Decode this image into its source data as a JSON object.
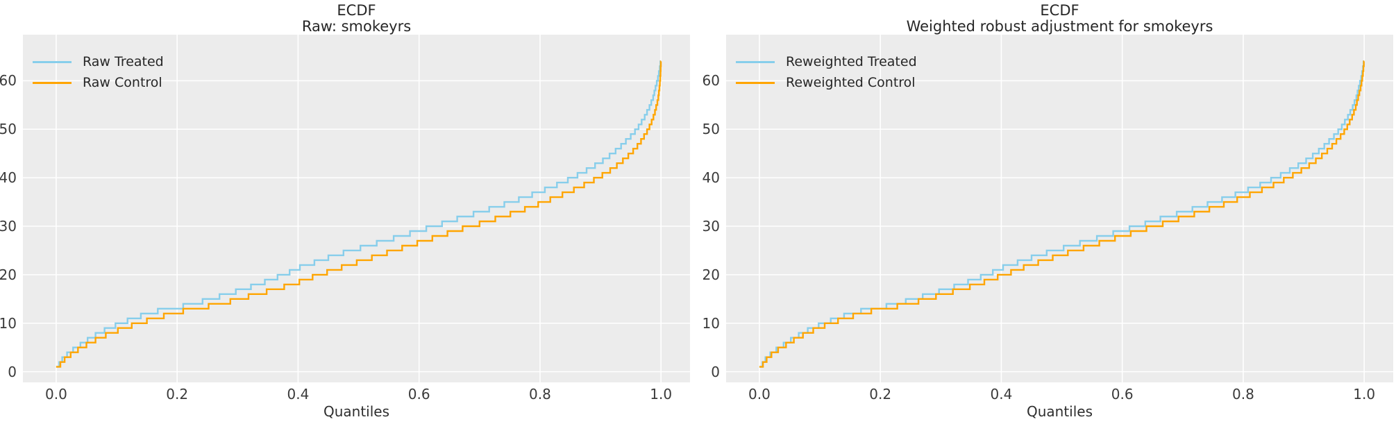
{
  "style": {
    "figure_bg": "#ffffff",
    "plot_bg": "#ececec",
    "grid_color": "#ffffff",
    "treated_color": "#87ceeb",
    "control_color": "#ffa500",
    "title_color": "#262626",
    "tick_color": "#3a3a3a"
  },
  "chart_data": [
    {
      "type": "line",
      "subtype": "step-quantile-function",
      "title_lines": [
        "ECDF",
        "Raw: smokeyrs"
      ],
      "xlabel": "Quantiles",
      "ylabel": "",
      "grid": true,
      "legend_position": "upper-left",
      "xlim": [
        -0.055,
        1.048
      ],
      "ylim": [
        -2.2,
        69.5
      ],
      "x_tick_values": [
        0.0,
        0.2,
        0.4,
        0.6,
        0.8,
        1.0
      ],
      "x_tick_labels": [
        "0.0",
        "0.2",
        "0.4",
        "0.6",
        "0.8",
        "1.0"
      ],
      "y_tick_values": [
        0,
        10,
        20,
        30,
        40,
        50,
        60
      ],
      "y_tick_labels": [
        "0",
        "10",
        "20",
        "30",
        "40",
        "50",
        "60"
      ],
      "values_axis": "smokeyrs (1 to 64, step curves)",
      "series": [
        {
          "name": "Raw Treated",
          "color": "#87ceeb",
          "values_start": 1,
          "quantiles_at_values": [
            0.0,
            0.005,
            0.01,
            0.018,
            0.028,
            0.04,
            0.052,
            0.065,
            0.08,
            0.098,
            0.118,
            0.14,
            0.168,
            0.21,
            0.242,
            0.27,
            0.297,
            0.322,
            0.345,
            0.366,
            0.386,
            0.403,
            0.427,
            0.45,
            0.475,
            0.503,
            0.53,
            0.558,
            0.585,
            0.612,
            0.638,
            0.663,
            0.69,
            0.716,
            0.741,
            0.765,
            0.787,
            0.808,
            0.828,
            0.846,
            0.862,
            0.877,
            0.891,
            0.904,
            0.915,
            0.925,
            0.934,
            0.942,
            0.95,
            0.957,
            0.963,
            0.968,
            0.973,
            0.977,
            0.981,
            0.984,
            0.987,
            0.989,
            0.991,
            0.993,
            0.995,
            0.9965,
            0.998,
            0.999
          ]
        },
        {
          "name": "Raw Control",
          "color": "#ffa500",
          "values_start": 1,
          "quantiles_at_values": [
            0.0,
            0.007,
            0.014,
            0.024,
            0.036,
            0.05,
            0.065,
            0.082,
            0.102,
            0.125,
            0.15,
            0.178,
            0.21,
            0.252,
            0.288,
            0.318,
            0.348,
            0.377,
            0.402,
            0.424,
            0.448,
            0.472,
            0.497,
            0.522,
            0.547,
            0.572,
            0.597,
            0.622,
            0.647,
            0.672,
            0.7,
            0.726,
            0.751,
            0.775,
            0.797,
            0.817,
            0.837,
            0.856,
            0.873,
            0.889,
            0.903,
            0.916,
            0.927,
            0.937,
            0.946,
            0.954,
            0.961,
            0.967,
            0.972,
            0.977,
            0.981,
            0.9845,
            0.9875,
            0.99,
            0.992,
            0.994,
            0.9955,
            0.9965,
            0.9975,
            0.9982,
            0.9988,
            0.9992,
            0.9995,
            0.9998
          ]
        }
      ]
    },
    {
      "type": "line",
      "subtype": "step-quantile-function",
      "title_lines": [
        "ECDF",
        "Weighted robust adjustment for smokeyrs"
      ],
      "xlabel": "Quantiles",
      "ylabel": "",
      "grid": true,
      "legend_position": "upper-left",
      "xlim": [
        -0.055,
        1.048
      ],
      "ylim": [
        -2.2,
        69.5
      ],
      "x_tick_values": [
        0.0,
        0.2,
        0.4,
        0.6,
        0.8,
        1.0
      ],
      "x_tick_labels": [
        "0.0",
        "0.2",
        "0.4",
        "0.6",
        "0.8",
        "1.0"
      ],
      "y_tick_values": [
        0,
        10,
        20,
        30,
        40,
        50,
        60
      ],
      "y_tick_labels": [
        "0",
        "10",
        "20",
        "30",
        "40",
        "50",
        "60"
      ],
      "values_axis": "smokeyrs (1 to 64, step curves)",
      "series": [
        {
          "name": "Reweighted Treated",
          "color": "#87ceeb",
          "values_start": 1,
          "quantiles_at_values": [
            0.0,
            0.005,
            0.01,
            0.018,
            0.028,
            0.04,
            0.052,
            0.065,
            0.08,
            0.098,
            0.118,
            0.14,
            0.168,
            0.21,
            0.242,
            0.27,
            0.297,
            0.322,
            0.345,
            0.366,
            0.386,
            0.403,
            0.427,
            0.45,
            0.475,
            0.503,
            0.53,
            0.558,
            0.585,
            0.612,
            0.638,
            0.663,
            0.69,
            0.716,
            0.741,
            0.765,
            0.787,
            0.808,
            0.828,
            0.846,
            0.862,
            0.877,
            0.891,
            0.904,
            0.915,
            0.925,
            0.934,
            0.942,
            0.95,
            0.957,
            0.963,
            0.968,
            0.973,
            0.977,
            0.981,
            0.984,
            0.987,
            0.989,
            0.991,
            0.993,
            0.995,
            0.9965,
            0.998,
            0.999
          ]
        },
        {
          "name": "Reweighted Control",
          "color": "#ffa500",
          "values_start": 1,
          "quantiles_at_values": [
            0.0,
            0.006,
            0.012,
            0.02,
            0.031,
            0.044,
            0.057,
            0.072,
            0.089,
            0.108,
            0.13,
            0.155,
            0.185,
            0.228,
            0.263,
            0.292,
            0.32,
            0.348,
            0.372,
            0.394,
            0.416,
            0.437,
            0.461,
            0.485,
            0.51,
            0.536,
            0.562,
            0.588,
            0.614,
            0.64,
            0.667,
            0.693,
            0.719,
            0.744,
            0.768,
            0.79,
            0.811,
            0.831,
            0.85,
            0.867,
            0.882,
            0.896,
            0.909,
            0.92,
            0.93,
            0.939,
            0.947,
            0.954,
            0.961,
            0.967,
            0.972,
            0.976,
            0.98,
            0.983,
            0.986,
            0.988,
            0.99,
            0.992,
            0.994,
            0.9955,
            0.9968,
            0.998,
            0.9988,
            0.9994
          ]
        }
      ]
    }
  ]
}
